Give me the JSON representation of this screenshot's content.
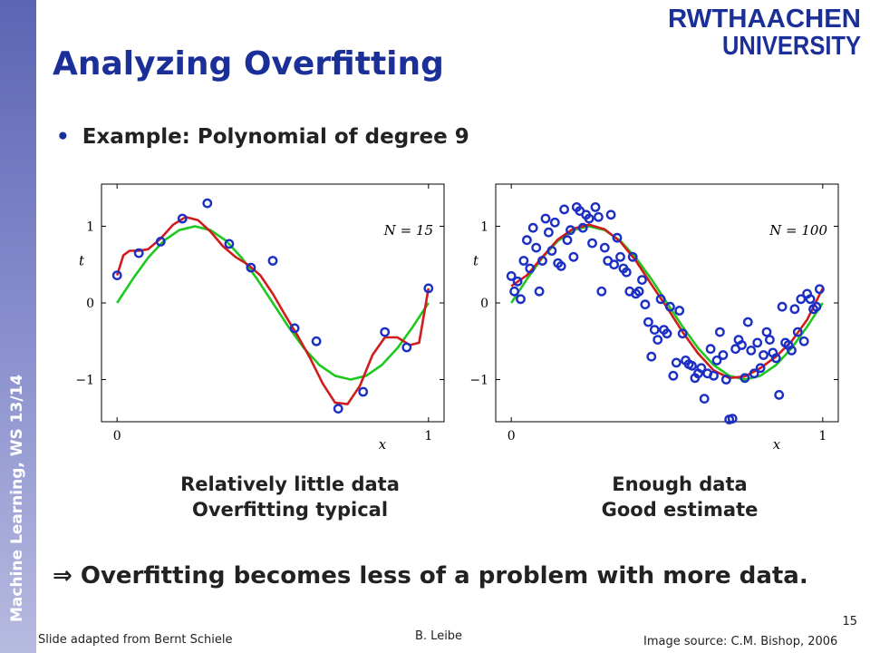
{
  "sidebar": {
    "label": "Machine Learning, WS 13/14",
    "color": "#6b74bf"
  },
  "logo": {
    "line1": "RWTHAACHEN",
    "line2": "UNIVERSITY",
    "color": "#1b2f98"
  },
  "slide": {
    "title": "Analyzing Overfitting",
    "bullet": "Example: Polynomial of degree 9",
    "conclusion_arrow": "⇒",
    "conclusion": "Overfitting becomes less of a problem with more data.",
    "title_color": "#1b2f98"
  },
  "captions": {
    "left": {
      "line1": "Relatively little data",
      "line2": "Overfitting typical"
    },
    "right": {
      "line1": "Enough data",
      "line2": "Good estimate"
    }
  },
  "footer": {
    "credit": "Slide adapted from Bernt Schiele",
    "author": "B. Leibe",
    "source": "Image source: C.M. Bishop, 2006",
    "page": "15"
  },
  "chart_data": [
    {
      "type": "scatter",
      "title": "N = 15",
      "xlabel": "x",
      "ylabel": "t",
      "xlim": [
        -0.05,
        1.05
      ],
      "ylim": [
        -1.55,
        1.55
      ],
      "x_ticks": [
        0,
        1
      ],
      "y_ticks": [
        -1,
        0,
        1
      ],
      "x_tick_labels": [
        "0",
        "1"
      ],
      "y_tick_labels": [
        "−1",
        "0",
        "1"
      ],
      "grid": false,
      "series": [
        {
          "name": "",
          "kind": "points",
          "color": "#1c2fc4",
          "x": [
            0.0,
            0.07,
            0.14,
            0.21,
            0.29,
            0.36,
            0.43,
            0.5,
            0.57,
            0.64,
            0.71,
            0.79,
            0.86,
            0.93,
            1.0
          ],
          "y": [
            0.36,
            0.65,
            0.8,
            1.1,
            1.3,
            0.77,
            0.46,
            0.55,
            -0.33,
            -0.5,
            -1.38,
            -1.16,
            -0.38,
            -0.58,
            0.19
          ]
        },
        {
          "name": "",
          "kind": "curve",
          "color": "#1ec81e",
          "x": [
            0.0,
            0.05,
            0.1,
            0.15,
            0.2,
            0.25,
            0.3,
            0.35,
            0.4,
            0.45,
            0.5,
            0.55,
            0.6,
            0.65,
            0.7,
            0.75,
            0.8,
            0.85,
            0.9,
            0.95,
            1.0
          ],
          "y": [
            0.0,
            0.31,
            0.59,
            0.81,
            0.95,
            1.0,
            0.95,
            0.81,
            0.59,
            0.31,
            0.0,
            -0.31,
            -0.59,
            -0.81,
            -0.95,
            -1.0,
            -0.95,
            -0.81,
            -0.59,
            -0.31,
            0.0
          ]
        },
        {
          "name": "",
          "kind": "curve",
          "color": "#d01c1c",
          "x": [
            0.0,
            0.02,
            0.04,
            0.07,
            0.1,
            0.14,
            0.18,
            0.22,
            0.26,
            0.3,
            0.34,
            0.38,
            0.42,
            0.46,
            0.5,
            0.54,
            0.58,
            0.62,
            0.66,
            0.7,
            0.74,
            0.78,
            0.82,
            0.86,
            0.9,
            0.94,
            0.97,
            1.0
          ],
          "y": [
            0.36,
            0.62,
            0.68,
            0.68,
            0.7,
            0.84,
            1.02,
            1.12,
            1.08,
            0.93,
            0.74,
            0.6,
            0.5,
            0.36,
            0.12,
            -0.16,
            -0.43,
            -0.72,
            -1.05,
            -1.3,
            -1.32,
            -1.08,
            -0.68,
            -0.45,
            -0.45,
            -0.55,
            -0.52,
            0.19
          ]
        }
      ]
    },
    {
      "type": "scatter",
      "title": "N = 100",
      "xlabel": "x",
      "ylabel": "t",
      "xlim": [
        -0.05,
        1.05
      ],
      "ylim": [
        -1.55,
        1.55
      ],
      "x_ticks": [
        0,
        1
      ],
      "y_ticks": [
        -1,
        0,
        1
      ],
      "x_tick_labels": [
        "0",
        "1"
      ],
      "y_tick_labels": [
        "−1",
        "0",
        "1"
      ],
      "grid": false,
      "series": [
        {
          "name": "",
          "kind": "points",
          "color": "#1c2fc4",
          "x": [
            0.0,
            0.01,
            0.02,
            0.03,
            0.04,
            0.05,
            0.06,
            0.07,
            0.08,
            0.09,
            0.1,
            0.11,
            0.12,
            0.13,
            0.14,
            0.15,
            0.16,
            0.17,
            0.18,
            0.19,
            0.2,
            0.21,
            0.22,
            0.23,
            0.24,
            0.25,
            0.26,
            0.27,
            0.28,
            0.29,
            0.3,
            0.31,
            0.32,
            0.33,
            0.34,
            0.35,
            0.36,
            0.37,
            0.38,
            0.39,
            0.4,
            0.41,
            0.42,
            0.43,
            0.44,
            0.45,
            0.46,
            0.47,
            0.48,
            0.49,
            0.5,
            0.51,
            0.52,
            0.53,
            0.54,
            0.55,
            0.56,
            0.57,
            0.58,
            0.59,
            0.6,
            0.61,
            0.62,
            0.63,
            0.64,
            0.65,
            0.66,
            0.67,
            0.68,
            0.69,
            0.7,
            0.71,
            0.72,
            0.73,
            0.74,
            0.75,
            0.76,
            0.77,
            0.78,
            0.79,
            0.8,
            0.81,
            0.82,
            0.83,
            0.84,
            0.85,
            0.86,
            0.87,
            0.88,
            0.89,
            0.9,
            0.91,
            0.92,
            0.93,
            0.94,
            0.95,
            0.96,
            0.97,
            0.98,
            0.99
          ],
          "y": [
            0.35,
            0.15,
            0.28,
            0.05,
            0.55,
            0.82,
            0.45,
            0.98,
            0.72,
            0.15,
            0.55,
            1.1,
            0.92,
            0.68,
            1.05,
            0.52,
            0.48,
            1.22,
            0.82,
            0.95,
            0.6,
            1.25,
            1.2,
            0.98,
            1.15,
            1.1,
            0.78,
            1.25,
            1.12,
            0.15,
            0.72,
            0.55,
            1.15,
            0.5,
            0.85,
            0.6,
            0.45,
            0.4,
            0.15,
            0.6,
            0.12,
            0.15,
            0.3,
            -0.02,
            -0.25,
            -0.7,
            -0.35,
            -0.48,
            0.05,
            -0.35,
            -0.4,
            -0.05,
            -0.95,
            -0.78,
            -0.1,
            -0.4,
            -0.75,
            -0.8,
            -0.82,
            -0.98,
            -0.92,
            -0.85,
            -1.25,
            -0.92,
            -0.6,
            -0.95,
            -0.75,
            -0.38,
            -0.68,
            -1.0,
            -1.52,
            -1.51,
            -0.6,
            -0.48,
            -0.55,
            -0.98,
            -0.25,
            -0.62,
            -0.92,
            -0.52,
            -0.85,
            -0.68,
            -0.38,
            -0.48,
            -0.65,
            -0.72,
            -1.2,
            -0.05,
            -0.52,
            -0.55,
            -0.62,
            -0.08,
            -0.38,
            0.05,
            -0.5,
            0.12,
            0.05,
            -0.08,
            -0.05,
            0.18
          ]
        },
        {
          "name": "",
          "kind": "curve",
          "color": "#1ec81e",
          "x": [
            0.0,
            0.05,
            0.1,
            0.15,
            0.2,
            0.25,
            0.3,
            0.35,
            0.4,
            0.45,
            0.5,
            0.55,
            0.6,
            0.65,
            0.7,
            0.75,
            0.8,
            0.85,
            0.9,
            0.95,
            1.0
          ],
          "y": [
            0.0,
            0.31,
            0.59,
            0.81,
            0.95,
            1.0,
            0.95,
            0.81,
            0.59,
            0.31,
            0.0,
            -0.31,
            -0.59,
            -0.81,
            -0.95,
            -1.0,
            -0.95,
            -0.81,
            -0.59,
            -0.31,
            0.0
          ]
        },
        {
          "name": "",
          "kind": "curve",
          "color": "#d01c1c",
          "x": [
            0.0,
            0.05,
            0.1,
            0.15,
            0.2,
            0.25,
            0.3,
            0.35,
            0.4,
            0.45,
            0.5,
            0.55,
            0.6,
            0.65,
            0.7,
            0.75,
            0.8,
            0.85,
            0.9,
            0.95,
            1.0
          ],
          "y": [
            0.22,
            0.36,
            0.6,
            0.83,
            0.97,
            1.02,
            0.96,
            0.8,
            0.55,
            0.24,
            -0.06,
            -0.38,
            -0.66,
            -0.88,
            -0.98,
            -0.96,
            -0.85,
            -0.7,
            -0.5,
            -0.22,
            0.19
          ]
        }
      ]
    }
  ]
}
